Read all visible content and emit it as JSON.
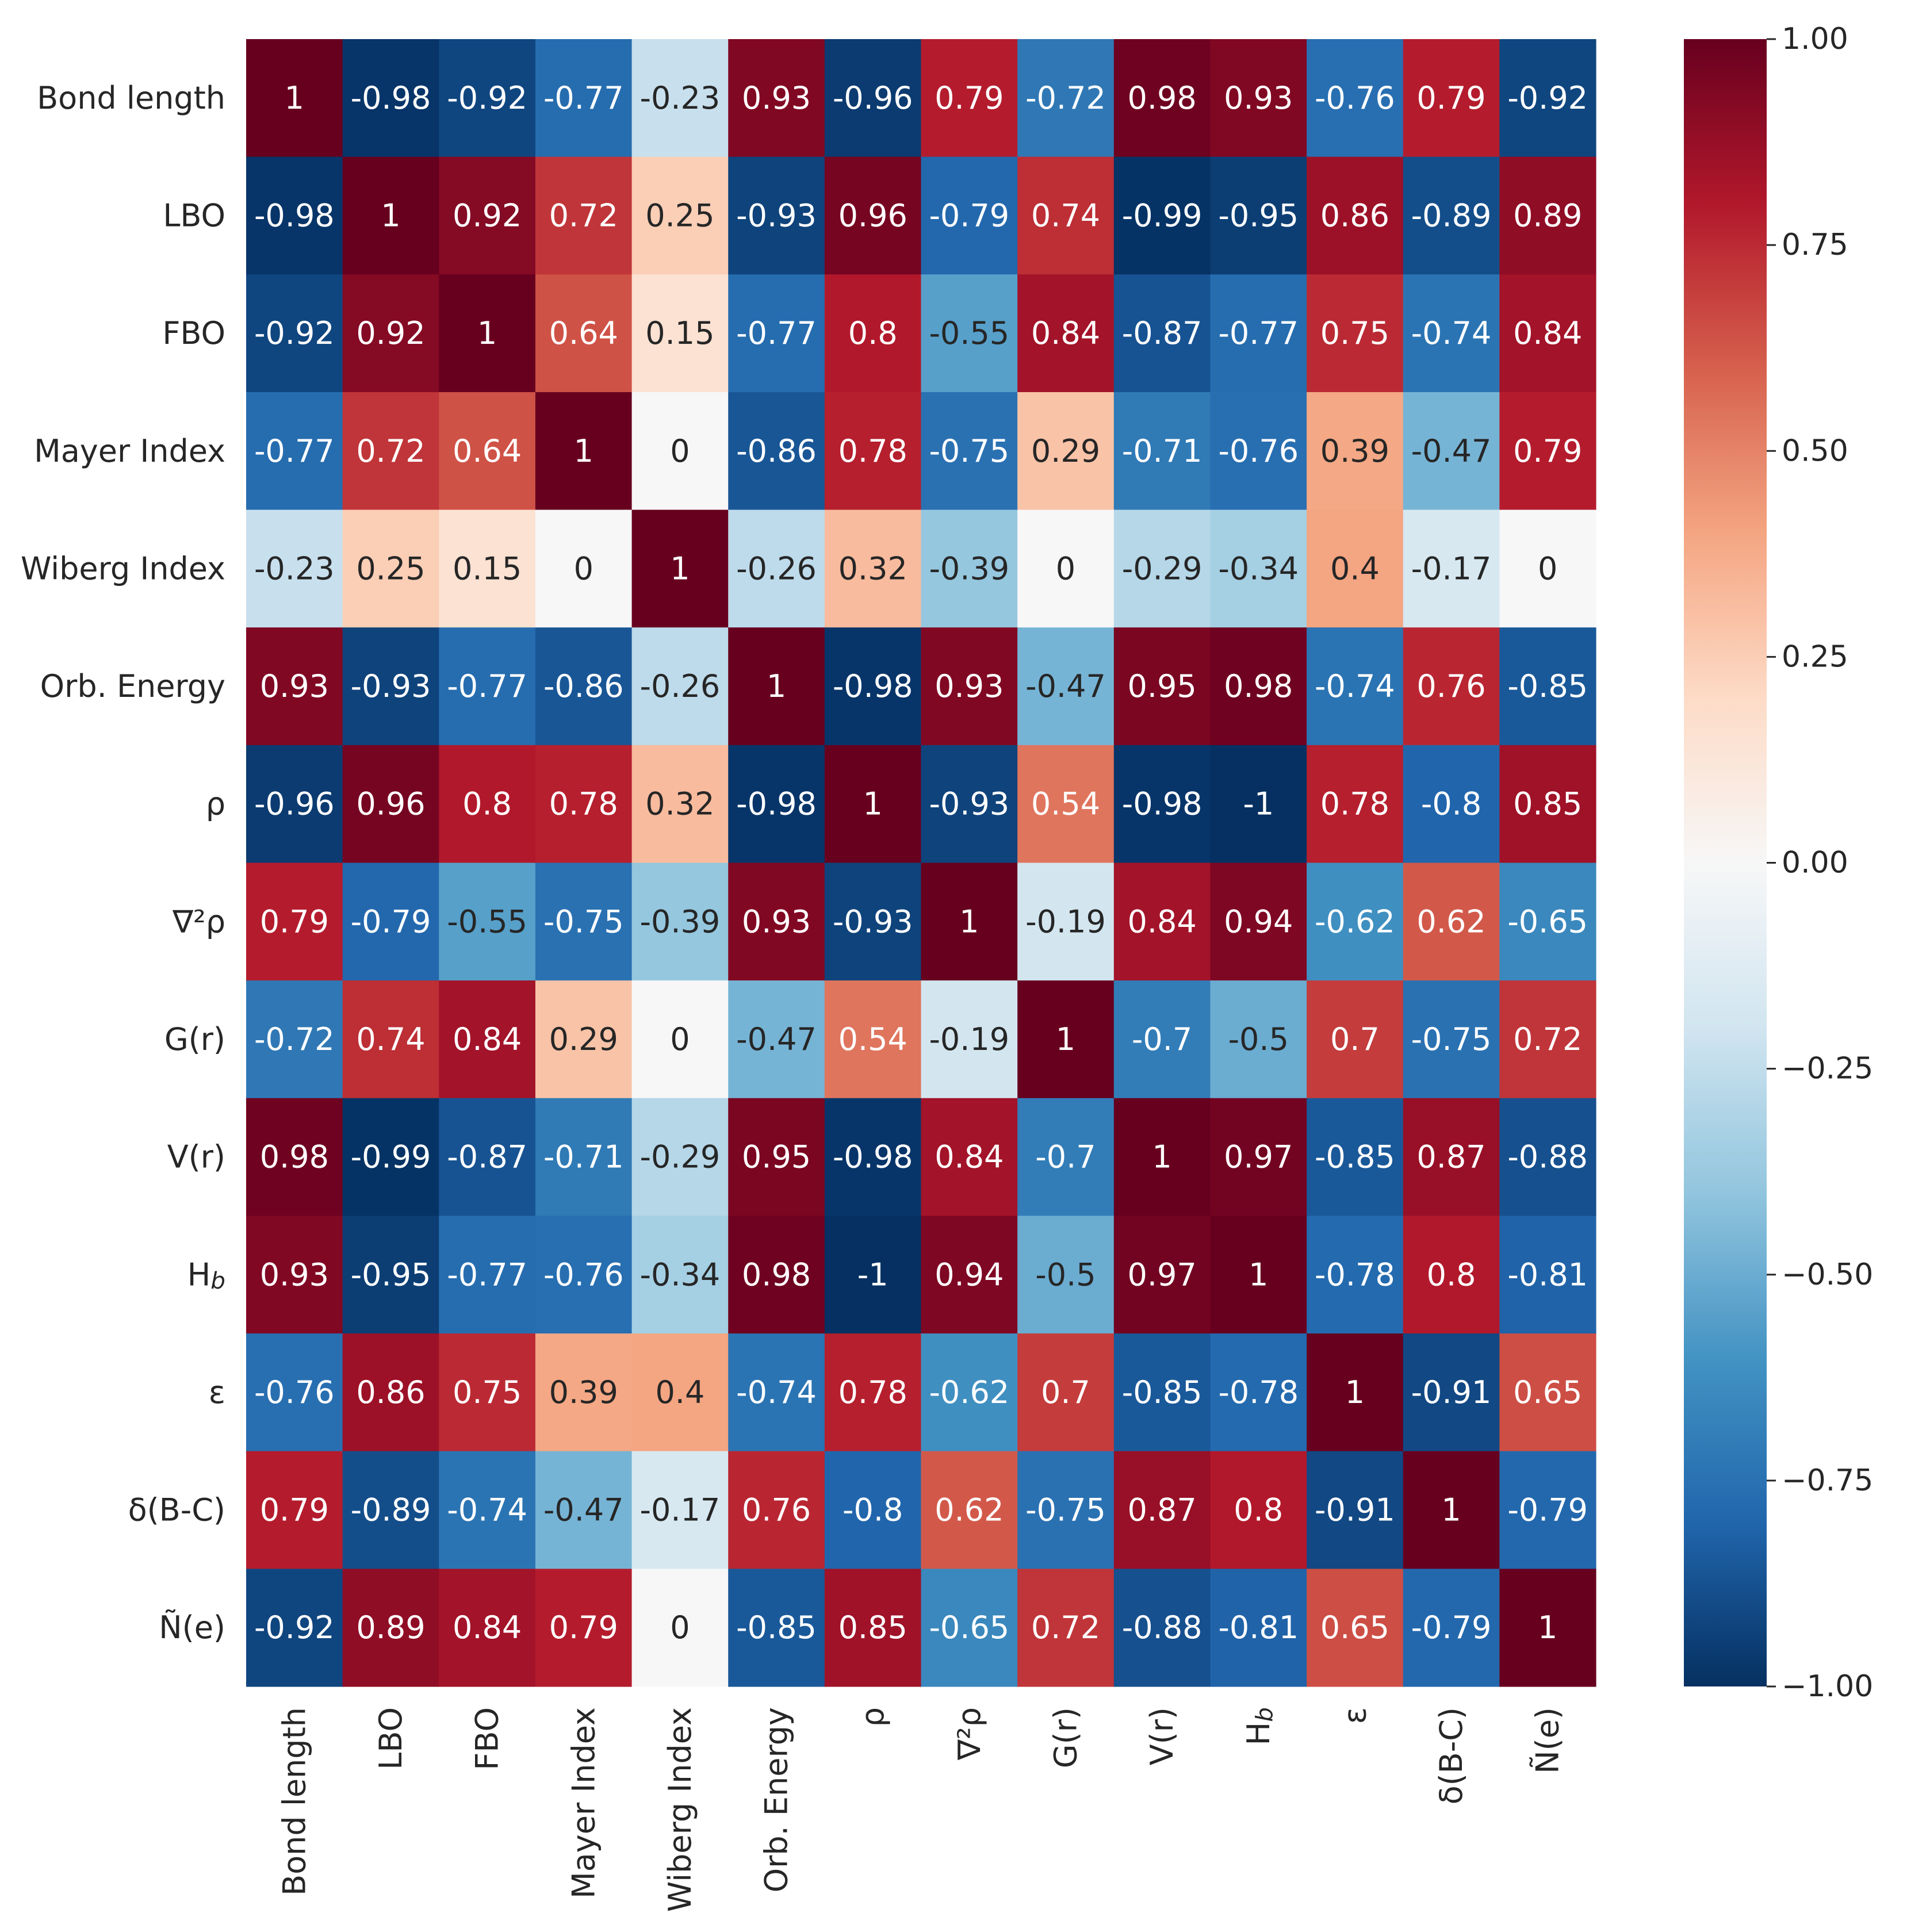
{
  "chart_data": {
    "type": "heatmap",
    "title": "",
    "xlabel": "",
    "ylabel": "",
    "labels": [
      "Bond length",
      "LBO",
      "FBO",
      "Mayer Index",
      "Wiberg Index",
      "Orb. Energy",
      "ρ",
      "∇²ρ",
      "G(r)",
      "V(r)",
      "H_b",
      "ε",
      "δ(B-C)",
      "Ñ(e)"
    ],
    "matrix": [
      [
        1,
        -0.98,
        -0.92,
        -0.77,
        -0.23,
        0.93,
        -0.96,
        0.79,
        -0.72,
        0.98,
        0.93,
        -0.76,
        0.79,
        -0.92
      ],
      [
        -0.98,
        1,
        0.92,
        0.72,
        0.25,
        -0.93,
        0.96,
        -0.79,
        0.74,
        -0.99,
        -0.95,
        0.86,
        -0.89,
        0.89
      ],
      [
        -0.92,
        0.92,
        1,
        0.64,
        0.15,
        -0.77,
        0.8,
        -0.55,
        0.84,
        -0.87,
        -0.77,
        0.75,
        -0.74,
        0.84
      ],
      [
        -0.77,
        0.72,
        0.64,
        1,
        0,
        -0.86,
        0.78,
        -0.75,
        0.29,
        -0.71,
        -0.76,
        0.39,
        -0.47,
        0.79
      ],
      [
        -0.23,
        0.25,
        0.15,
        0,
        1,
        -0.26,
        0.32,
        -0.39,
        0,
        -0.29,
        -0.34,
        0.4,
        -0.17,
        0
      ],
      [
        0.93,
        -0.93,
        -0.77,
        -0.86,
        -0.26,
        1,
        -0.98,
        0.93,
        -0.47,
        0.95,
        0.98,
        -0.74,
        0.76,
        -0.85
      ],
      [
        -0.96,
        0.96,
        0.8,
        0.78,
        0.32,
        -0.98,
        1,
        -0.93,
        0.54,
        -0.98,
        -1,
        0.78,
        -0.8,
        0.85
      ],
      [
        0.79,
        -0.79,
        -0.55,
        -0.75,
        -0.39,
        0.93,
        -0.93,
        1,
        -0.19,
        0.84,
        0.94,
        -0.62,
        0.62,
        -0.65
      ],
      [
        -0.72,
        0.74,
        0.84,
        0.29,
        0,
        -0.47,
        0.54,
        -0.19,
        1,
        -0.7,
        -0.5,
        0.7,
        -0.75,
        0.72
      ],
      [
        0.98,
        -0.99,
        -0.87,
        -0.71,
        -0.29,
        0.95,
        -0.98,
        0.84,
        -0.7,
        1,
        0.97,
        -0.85,
        0.87,
        -0.88
      ],
      [
        0.93,
        -0.95,
        -0.77,
        -0.76,
        -0.34,
        0.98,
        -1,
        0.94,
        -0.5,
        0.97,
        1,
        -0.78,
        0.8,
        -0.81
      ],
      [
        -0.76,
        0.86,
        0.75,
        0.39,
        0.4,
        -0.74,
        0.78,
        -0.62,
        0.7,
        -0.85,
        -0.78,
        1,
        -0.91,
        0.65
      ],
      [
        0.79,
        -0.89,
        -0.74,
        -0.47,
        -0.17,
        0.76,
        -0.8,
        0.62,
        -0.75,
        0.87,
        0.8,
        -0.91,
        1,
        -0.79
      ],
      [
        -0.92,
        0.89,
        0.84,
        0.79,
        0,
        -0.85,
        0.85,
        -0.65,
        0.72,
        -0.88,
        -0.81,
        0.65,
        -0.79,
        1
      ]
    ],
    "colormap": "RdBu_r",
    "vmin": -1,
    "vmax": 1,
    "colorbar_ticks": [
      1.0,
      0.75,
      0.5,
      0.25,
      0.0,
      -0.25,
      -0.5,
      -0.75,
      -1.0
    ],
    "colorbar_tick_labels": [
      "1.00",
      "0.75",
      "0.50",
      "0.25",
      "0.00",
      "−0.25",
      "−0.50",
      "−0.75",
      "−1.00"
    ],
    "colorbar_placement": "right",
    "grid": false,
    "annotations": true
  }
}
